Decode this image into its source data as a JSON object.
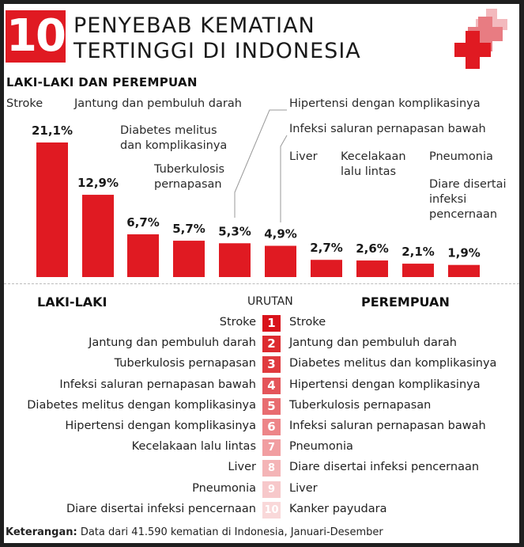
{
  "header": {
    "number": "10",
    "title_line1": "PENYEBAB KEMATIAN",
    "title_line2": "TERTINGGI DI INDONESIA",
    "logo_icon": "medical-cross-icon"
  },
  "colors": {
    "accent": "#e01a22",
    "text": "#222222"
  },
  "chart_data": {
    "type": "bar",
    "title": "LAKI-LAKI DAN PEREMPUAN",
    "unit": "%",
    "categories": [
      "Stroke",
      "Jantung dan pembuluh darah",
      "Diabetes melitus dan komplikasinya",
      "Tuberkulosis pernapasan",
      "Hipertensi dengan komplikasinya",
      "Infeksi saluran pernapasan bawah",
      "Liver",
      "Kecelakaan lalu lintas",
      "Pneumonia",
      "Diare disertai infeksi pencernaan"
    ],
    "category_label_lines": [
      [
        "Stroke"
      ],
      [
        "Jantung dan pembuluh darah"
      ],
      [
        "Diabetes melitus",
        "dan komplikasinya"
      ],
      [
        "Tuberkulosis",
        "pernapasan"
      ],
      [
        "Hipertensi dengan komplikasinya"
      ],
      [
        "Infeksi saluran pernapasan bawah"
      ],
      [
        "Liver"
      ],
      [
        "Kecelakaan",
        "lalu lintas"
      ],
      [
        "Pneumonia"
      ],
      [
        "Diare disertai",
        "infeksi",
        "pencernaan"
      ]
    ],
    "values": [
      21.1,
      12.9,
      6.7,
      5.7,
      5.3,
      4.9,
      2.7,
      2.6,
      2.1,
      1.9
    ],
    "value_labels": [
      "21,1%",
      "12,9%",
      "6,7%",
      "5,7%",
      "5,3%",
      "4,9%",
      "2,7%",
      "2,6%",
      "2,1%",
      "1,9%"
    ],
    "ylim": [
      0,
      21.1
    ],
    "grid": false,
    "legend": "none"
  },
  "ranking": {
    "left_header": "LAKI-LAKI",
    "middle_header": "URUTAN",
    "right_header": "PEREMPUAN",
    "rows": [
      {
        "rank": "1",
        "male": "Stroke",
        "female": "Stroke",
        "color": "#d9121b"
      },
      {
        "rank": "2",
        "male": "Jantung dan pembuluh darah",
        "female": "Jantung dan pembuluh darah",
        "color": "#dd2a2f"
      },
      {
        "rank": "3",
        "male": "Tuberkulosis pernapasan",
        "female": "Diabetes melitus dan komplikasinya",
        "color": "#e03a3e"
      },
      {
        "rank": "4",
        "male": "Infeksi saluran pernapasan bawah",
        "female": "Hipertensi dengan komplikasinya",
        "color": "#e4545a"
      },
      {
        "rank": "5",
        "male": "Diabetes melitus dengan komplikasinya",
        "female": "Tuberkulosis pernapasan",
        "color": "#e86c70"
      },
      {
        "rank": "6",
        "male": "Hipertensi dengan komplikasinya",
        "female": "Infeksi saluran pernapasan bawah",
        "color": "#ed8588"
      },
      {
        "rank": "7",
        "male": "Kecelakaan lalu lintas",
        "female": "Pneumonia",
        "color": "#f19ea1"
      },
      {
        "rank": "8",
        "male": "Liver",
        "female": "Diare disertai infeksi pencernaan",
        "color": "#f4b4b6"
      },
      {
        "rank": "9",
        "male": "Pneumonia",
        "female": "Liver",
        "color": "#f7c8ca"
      },
      {
        "rank": "10",
        "male": "Diare disertai infeksi pencernaan",
        "female": "Kanker payudara",
        "color": "#f9d8d9"
      }
    ]
  },
  "footer": {
    "label": "Keterangan:",
    "text": "Data dari 41.590 kematian di Indonesia, Januari-Desember"
  }
}
